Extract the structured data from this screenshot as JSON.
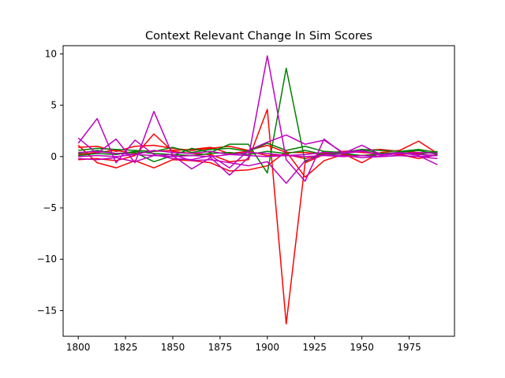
{
  "chart_data": {
    "type": "line",
    "title": "Context Relevant Change In Sim Scores",
    "xlabel": "",
    "ylabel": "",
    "xlim": [
      1792,
      1999
    ],
    "ylim": [
      -17.5,
      10.8
    ],
    "x_ticks": [
      1800,
      1825,
      1850,
      1875,
      1900,
      1925,
      1950,
      1975
    ],
    "y_ticks": [
      10,
      5,
      0,
      -5,
      -10,
      -15
    ],
    "x_tick_labels": [
      "1800",
      "1825",
      "1850",
      "1875",
      "1900",
      "1925",
      "1950",
      "1975"
    ],
    "y_tick_labels": [
      "10",
      "5",
      "0",
      "−5",
      "−10",
      "−15"
    ],
    "grid": false,
    "legend": "none",
    "x": [
      1800,
      1810,
      1820,
      1830,
      1840,
      1850,
      1860,
      1870,
      1880,
      1890,
      1900,
      1910,
      1920,
      1930,
      1940,
      1950,
      1960,
      1970,
      1980,
      1990
    ],
    "series": [
      {
        "color": "#ff0000",
        "values": [
          -0.3,
          -0.2,
          -0.4,
          0.1,
          2.2,
          0.5,
          0.3,
          0.2,
          -0.5,
          -0.3,
          4.6,
          -16.3,
          -0.6,
          0.2,
          0.3,
          -0.6,
          0.4,
          0.6,
          1.5,
          0.3
        ]
      },
      {
        "color": "#ff0000",
        "values": [
          1.1,
          -0.6,
          -1.1,
          -0.4,
          -1.1,
          -0.3,
          -0.4,
          -0.6,
          -1.4,
          -1.3,
          -0.9,
          0.5,
          -2.0,
          -0.4,
          0.2,
          0.1,
          0.3,
          0.2,
          -0.2,
          0.2
        ]
      },
      {
        "color": "#ff0000",
        "values": [
          0.9,
          1.0,
          0.5,
          1.0,
          1.1,
          0.8,
          0.6,
          0.8,
          1.0,
          0.6,
          1.1,
          0.4,
          0.4,
          0.2,
          0.5,
          0.6,
          0.7,
          0.5,
          0.4,
          0.3
        ]
      },
      {
        "color": "#ff0000",
        "values": [
          0.2,
          0.4,
          0.6,
          0.3,
          0.5,
          0.6,
          0.7,
          0.9,
          0.3,
          0.5,
          0.1,
          0.2,
          -0.2,
          0.3,
          0.5,
          0.4,
          0.3,
          0.2,
          0.3,
          0.4
        ]
      },
      {
        "color": "#008000",
        "values": [
          0.3,
          0.6,
          0.3,
          0.4,
          -0.5,
          0.1,
          0.8,
          0.4,
          1.2,
          1.2,
          -1.6,
          8.6,
          -0.5,
          0.5,
          0.3,
          0.7,
          0.3,
          0.4,
          0.6,
          0.2
        ]
      },
      {
        "color": "#008000",
        "values": [
          0.6,
          0.8,
          0.7,
          0.6,
          0.5,
          0.9,
          0.4,
          0.7,
          0.8,
          0.5,
          1.3,
          0.6,
          1.0,
          0.5,
          0.4,
          0.7,
          0.6,
          0.5,
          0.7,
          0.4
        ]
      },
      {
        "color": "#008000",
        "values": [
          0.1,
          0.3,
          0.2,
          0.5,
          0.3,
          0.2,
          0.1,
          0.3,
          0.4,
          0.2,
          0.5,
          0.3,
          0.6,
          0.2,
          0.3,
          0.1,
          0.2,
          0.3,
          0.2,
          0.5
        ]
      },
      {
        "color": "#bf00bf",
        "values": [
          1.8,
          0.3,
          1.7,
          -0.6,
          4.4,
          0.1,
          -1.2,
          -0.1,
          -1.8,
          -0.1,
          9.8,
          -0.3,
          -2.4,
          1.7,
          0.3,
          1.1,
          0.2,
          0.4,
          0.1,
          -0.8
        ]
      },
      {
        "color": "#bf00bf",
        "values": [
          1.3,
          3.7,
          -0.6,
          1.6,
          0.2,
          -0.2,
          -0.3,
          0.1,
          -1.1,
          0.6,
          1.4,
          2.1,
          1.2,
          1.6,
          0.4,
          0.6,
          0.1,
          0.3,
          0.2,
          0.1
        ]
      },
      {
        "color": "#bf00bf",
        "values": [
          -0.2,
          -0.3,
          -0.1,
          -0.5,
          0.1,
          0.2,
          -0.4,
          -0.3,
          -0.6,
          -0.9,
          -0.5,
          -2.6,
          -0.4,
          0.2,
          0.1,
          -0.1,
          0.0,
          0.1,
          0.0,
          -0.2
        ]
      },
      {
        "color": "#bf00bf",
        "values": [
          0.4,
          0.5,
          0.3,
          0.2,
          0.6,
          0.4,
          0.3,
          0.5,
          0.2,
          0.4,
          0.3,
          0.1,
          0.2,
          0.4,
          0.3,
          0.5,
          0.2,
          0.3,
          0.4,
          0.3
        ]
      },
      {
        "color": "#bf00bf",
        "values": [
          0.0,
          0.1,
          0.0,
          0.2,
          0.1,
          0.0,
          0.1,
          0.0,
          0.2,
          0.1,
          0.0,
          0.1,
          0.0,
          0.1,
          0.0,
          0.1,
          0.0,
          0.1,
          0.0,
          0.1
        ]
      }
    ]
  }
}
